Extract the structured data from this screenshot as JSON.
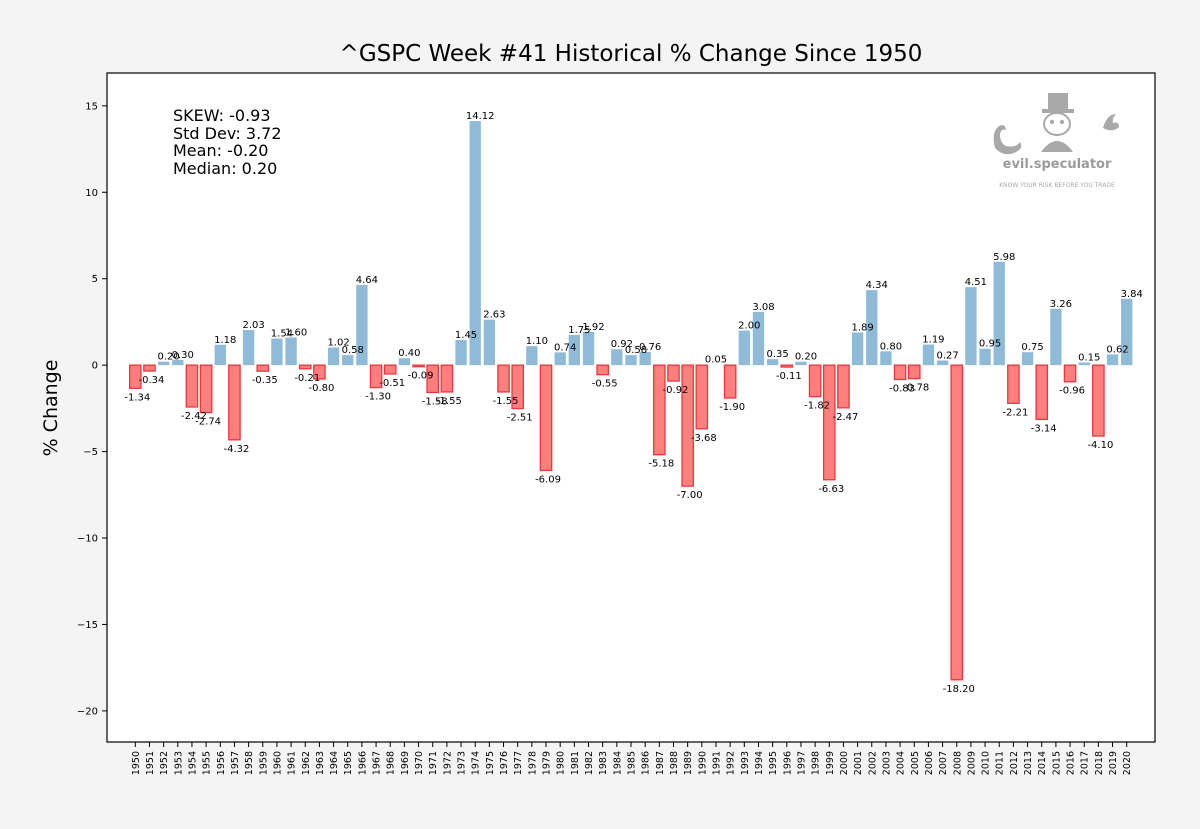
{
  "chart_data": {
    "type": "bar",
    "title": "^GSPC Week #41 Historical % Change Since 1950",
    "xlabel": "",
    "ylabel": "% Change",
    "ylim": [
      -21.8,
      16.9
    ],
    "yticks": [
      15,
      10,
      5,
      0,
      -5,
      -10,
      -15,
      -20
    ],
    "grid": false,
    "legend": "none",
    "colors": {
      "positive": "#8fbad8",
      "negative": "#ff7f7f",
      "negative_edge": "#e8383d",
      "background": "#f4f4f4",
      "plot_background": "#ffffff"
    },
    "categories": [
      "1950",
      "1951",
      "1952",
      "1953",
      "1954",
      "1955",
      "1956",
      "1957",
      "1958",
      "1959",
      "1960",
      "1961",
      "1962",
      "1963",
      "1964",
      "1965",
      "1966",
      "1967",
      "1968",
      "1969",
      "1970",
      "1971",
      "1972",
      "1973",
      "1974",
      "1975",
      "1976",
      "1977",
      "1978",
      "1979",
      "1980",
      "1981",
      "1982",
      "1983",
      "1984",
      "1985",
      "1986",
      "1987",
      "1988",
      "1989",
      "1990",
      "1991",
      "1992",
      "1993",
      "1994",
      "1995",
      "1996",
      "1997",
      "1998",
      "1999",
      "2000",
      "2001",
      "2002",
      "2003",
      "2004",
      "2005",
      "2006",
      "2007",
      "2008",
      "2009",
      "2010",
      "2011",
      "2012",
      "2013",
      "2014",
      "2015",
      "2016",
      "2017",
      "2018",
      "2019",
      "2020"
    ],
    "values": [
      -1.34,
      -0.34,
      0.2,
      0.3,
      -2.42,
      -2.74,
      1.18,
      -4.32,
      2.03,
      -0.35,
      1.54,
      1.6,
      -0.21,
      -0.8,
      1.02,
      0.58,
      4.64,
      -1.3,
      -0.51,
      0.4,
      -0.09,
      -1.58,
      -1.55,
      1.45,
      14.12,
      2.63,
      -1.55,
      -2.51,
      1.1,
      -6.09,
      0.74,
      1.75,
      1.92,
      -0.55,
      0.92,
      0.58,
      0.76,
      -5.18,
      -0.92,
      -7.0,
      -3.68,
      null,
      -1.9,
      2.0,
      3.08,
      0.35,
      -0.11,
      0.2,
      -1.82,
      -6.63,
      -2.47,
      1.89,
      4.34,
      0.8,
      -0.83,
      -0.78,
      1.19,
      0.27,
      -18.2,
      4.51,
      0.95,
      5.98,
      -2.21,
      0.75,
      -3.14,
      3.26,
      -0.96,
      0.15,
      -4.1,
      0.62,
      3.84
    ],
    "data_labels": [
      "-1.34",
      "-0.34",
      "0.20",
      "0.30",
      "-2.42",
      "-2.74",
      "1.18",
      "-4.32",
      "2.03",
      "-0.35",
      "1.54",
      "1.60",
      "-0.21",
      "-0.80",
      "1.02",
      "0.58",
      "4.64",
      "-1.30",
      "-0.51",
      "0.40",
      "-0.09",
      "-1.58",
      "-1.55",
      "1.45",
      "14.12",
      "2.63",
      "-1.55",
      "-2.51",
      "1.10",
      "-6.09",
      "0.74",
      "1.75",
      "1.92",
      "-0.55",
      "0.92",
      "0.58",
      "0.76",
      "-5.18",
      "-0.92",
      "-7.00",
      "-3.68",
      "",
      "-1.90",
      "2.00",
      "3.08",
      "0.35",
      "-0.11",
      "0.20",
      "-1.82",
      "-6.63",
      "-2.47",
      "1.89",
      "4.34",
      "0.80",
      "-0.83",
      "-0.78",
      "1.19",
      "0.27",
      "-18.20",
      "4.51",
      "0.95",
      "5.98",
      "-2.21",
      "0.75",
      "-3.14",
      "3.26",
      "-0.96",
      "0.15",
      "-4.10",
      "0.62",
      "3.84"
    ],
    "annotations": {
      "skew": "SKEW: -0.93",
      "std_dev": "Std Dev: 3.72",
      "mean": "Mean: -0.20",
      "median": "Median: 0.20"
    }
  },
  "extra_labels": [
    {
      "after_index": 40,
      "text": "0.05",
      "value": 0.05
    }
  ],
  "logo": {
    "name": "evil.speculator",
    "tagline": "KNOW YOUR RISK BEFORE YOU TRADE",
    "color": "#9b9b9b"
  }
}
